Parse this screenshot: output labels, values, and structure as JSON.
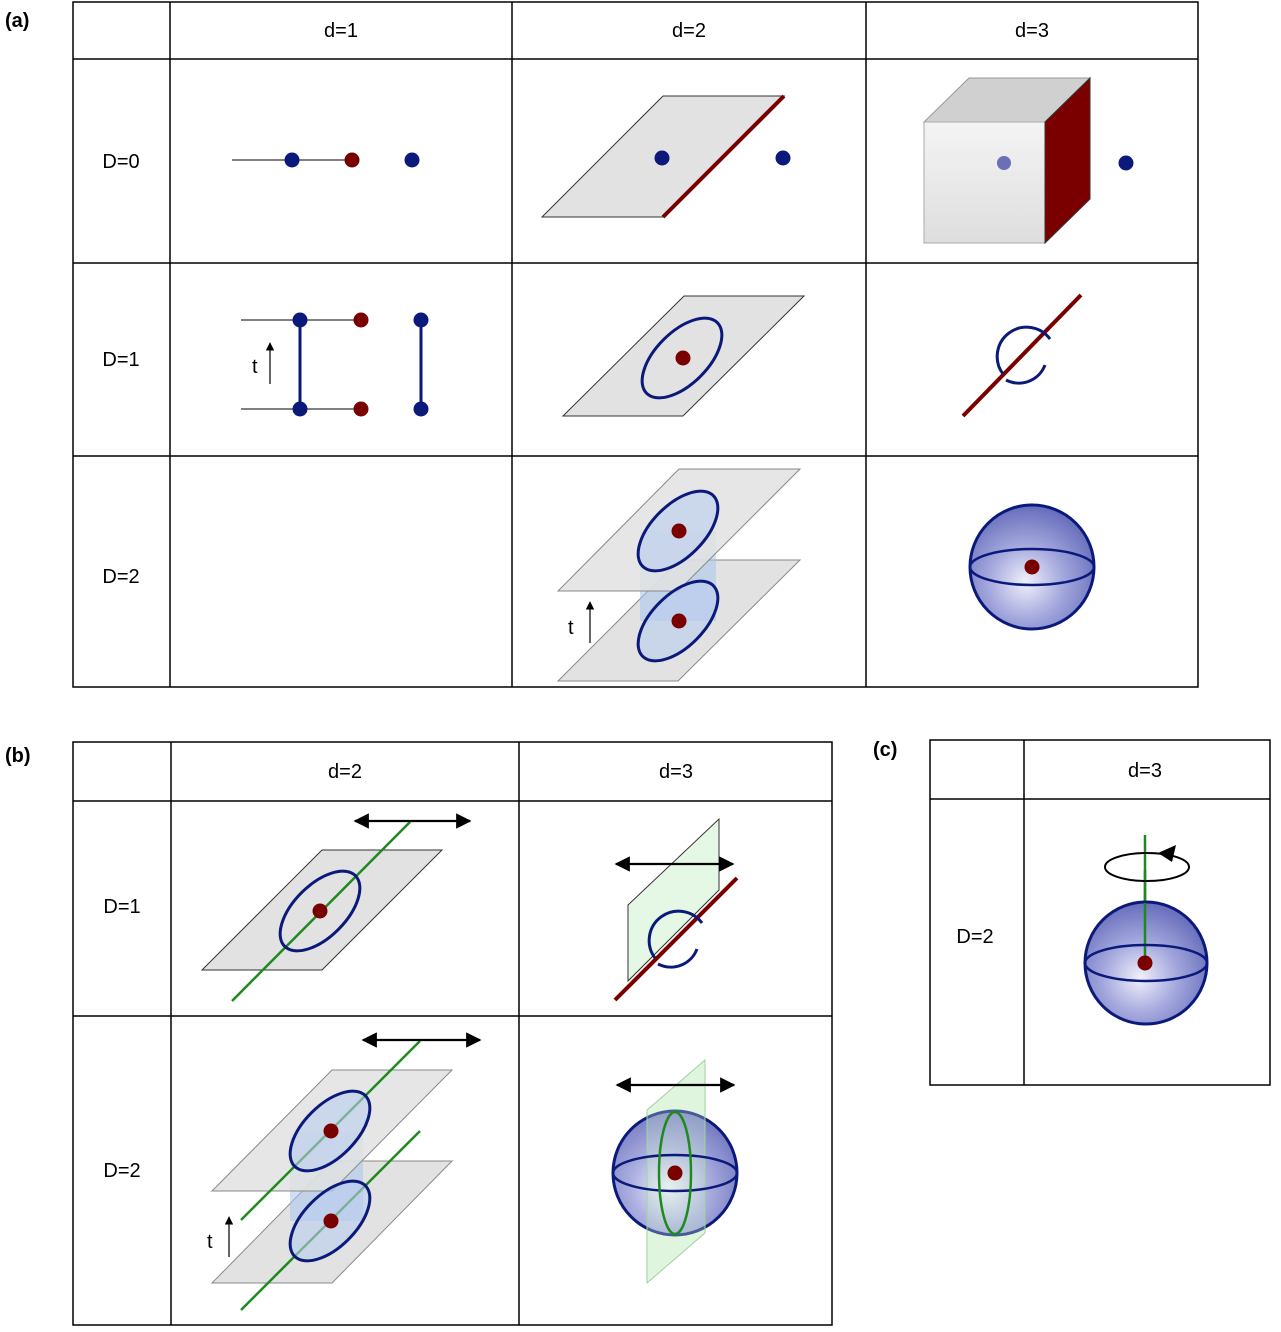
{
  "panels": {
    "a": {
      "label": "(a)",
      "columns": [
        "d=1",
        "d=2",
        "d=3"
      ],
      "rows": [
        "D=0",
        "D=1",
        "D=2"
      ],
      "time_label": "t"
    },
    "b": {
      "label": "(b)",
      "columns": [
        "d=2",
        "d=3"
      ],
      "rows": [
        "D=1",
        "D=2"
      ],
      "time_label": "t"
    },
    "c": {
      "label": "(c)",
      "columns": [
        "d=3"
      ],
      "rows": [
        "D=2"
      ]
    }
  },
  "colors": {
    "blue": "#0b1a7a",
    "red": "#7a0000",
    "green": "#1e8a1e",
    "plane": "#e6e6e6",
    "sphere": "#8a8fcf"
  }
}
